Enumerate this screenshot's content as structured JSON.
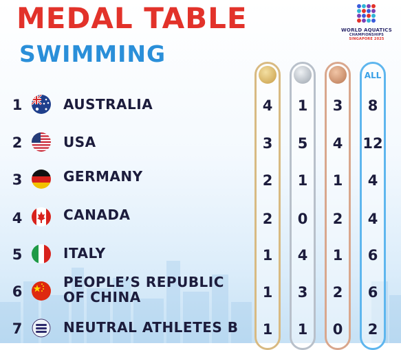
{
  "header": {
    "title": "MEDAL TABLE",
    "subtitle": "SWIMMING"
  },
  "logo": {
    "line1": "WORLD AQUATICS",
    "line2": "CHAMPIONSHIPS",
    "line3": "SINGAPORE 2025"
  },
  "columns": {
    "gold_icon": "gold-medal-icon",
    "silver_icon": "silver-medal-icon",
    "bronze_icon": "bronze-medal-icon",
    "total_label": "ALL"
  },
  "colors": {
    "title": "#e2322a",
    "subtitle": "#2a8fd9",
    "gold": "#d8ba82",
    "silver": "#b8c0ca",
    "bronze": "#d9a78d",
    "total": "#5eb6ee",
    "text": "#1c1c3c"
  },
  "rows": [
    {
      "rank": "1",
      "flag": "australia-flag-icon",
      "country": "AUSTRALIA",
      "gold": "4",
      "silver": "1",
      "bronze": "3",
      "total": "8"
    },
    {
      "rank": "2",
      "flag": "usa-flag-icon",
      "country": "USA",
      "gold": "3",
      "silver": "5",
      "bronze": "4",
      "total": "12"
    },
    {
      "rank": "3",
      "flag": "germany-flag-icon",
      "country": "GERMANY",
      "gold": "2",
      "silver": "1",
      "bronze": "1",
      "total": "4"
    },
    {
      "rank": "4",
      "flag": "canada-flag-icon",
      "country": "CANADA",
      "gold": "2",
      "silver": "0",
      "bronze": "2",
      "total": "4"
    },
    {
      "rank": "5",
      "flag": "italy-flag-icon",
      "country": "ITALY",
      "gold": "1",
      "silver": "4",
      "bronze": "1",
      "total": "6"
    },
    {
      "rank": "6",
      "flag": "china-flag-icon",
      "country_line1": "PEOPLE’S REPUBLIC",
      "country_line2": "OF CHINA",
      "gold": "1",
      "silver": "3",
      "bronze": "2",
      "total": "6"
    },
    {
      "rank": "7",
      "flag": "neutral-athletes-flag-icon",
      "country": "NEUTRAL ATHLETES B",
      "gold": "1",
      "silver": "1",
      "bronze": "0",
      "total": "2"
    }
  ]
}
